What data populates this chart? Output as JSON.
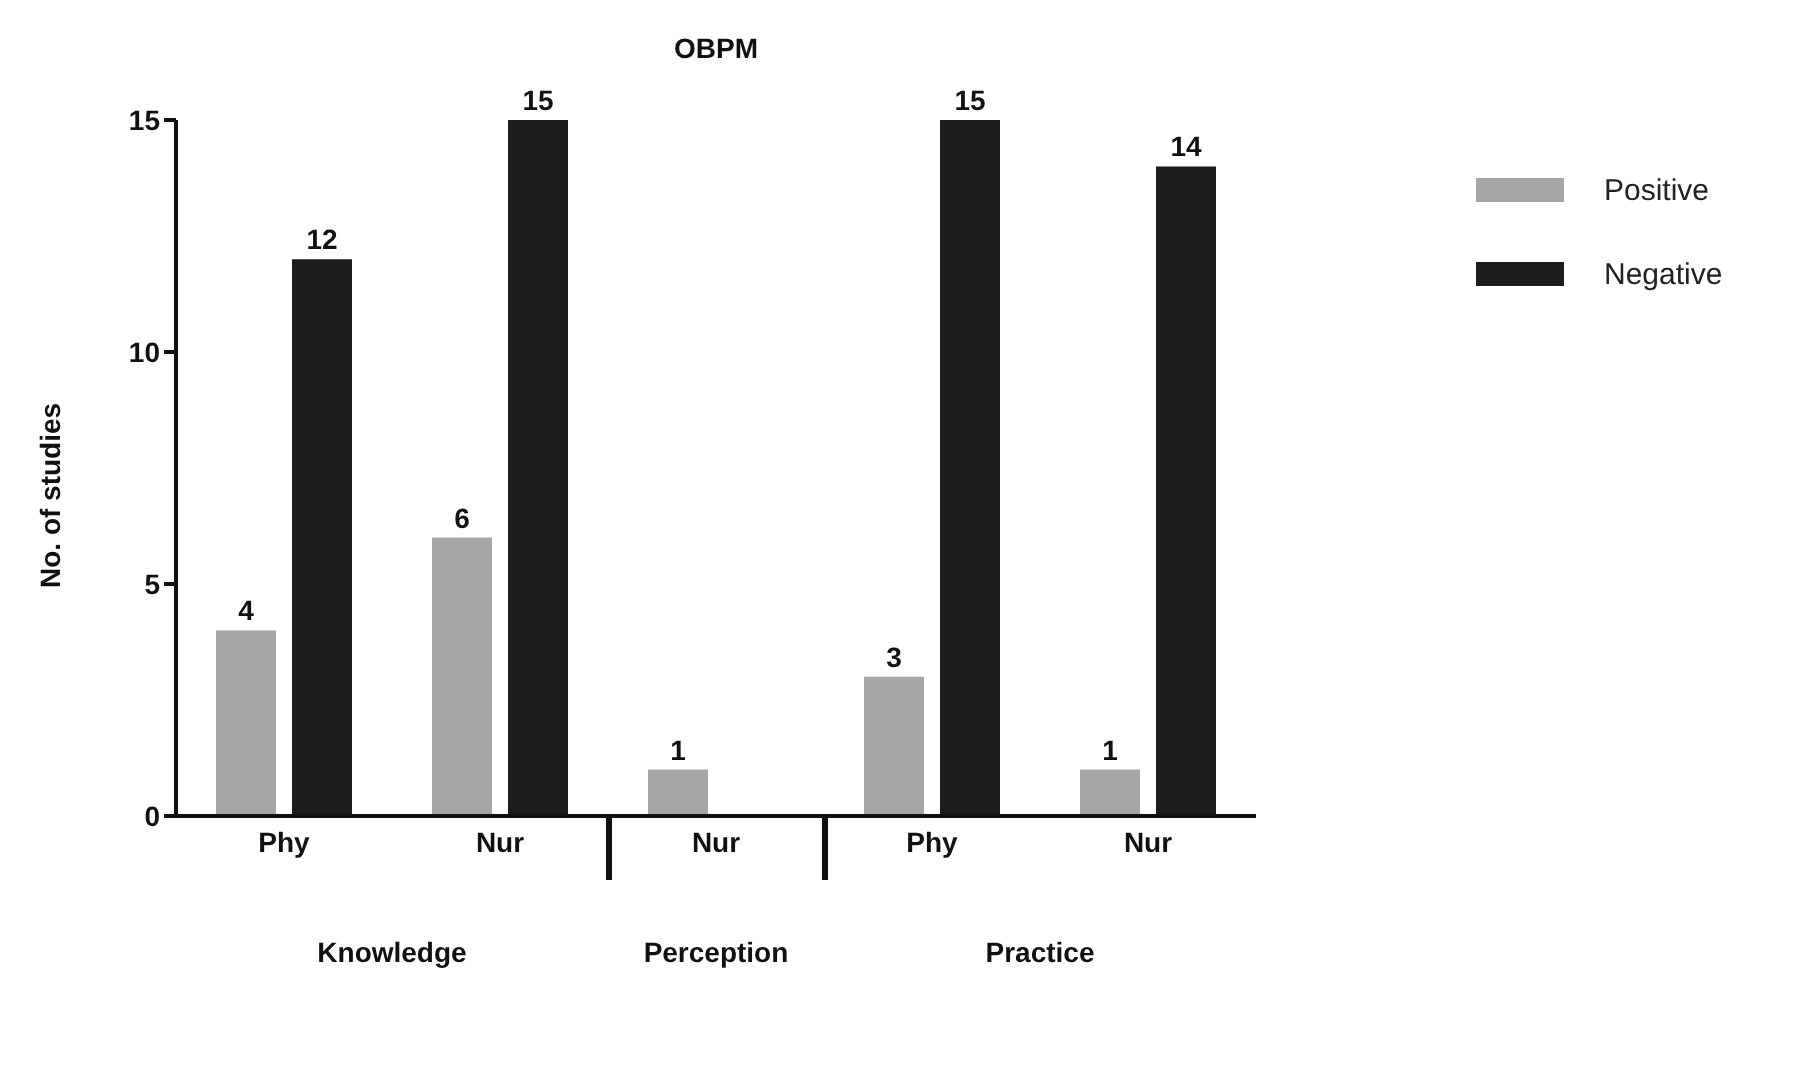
{
  "chart_data": {
    "type": "bar",
    "title": "OBPM",
    "ylabel": "No. of studies",
    "categories": [
      "Phy",
      "Nur",
      "Nur",
      "Phy",
      "Nur"
    ],
    "series": [
      {
        "name": "Positive",
        "color": "#a6a6a6",
        "values": [
          4,
          6,
          1,
          3,
          1
        ]
      },
      {
        "name": "Negative",
        "color": "#1c1c1c",
        "values": [
          12,
          15,
          null,
          15,
          14
        ]
      }
    ],
    "annotations": [
      "Knowledge",
      "Perception",
      "Practice"
    ],
    "ylim": [
      0,
      15
    ],
    "yticks": [
      0,
      5,
      10,
      15
    ],
    "legend": "top right",
    "data_labels": true
  }
}
